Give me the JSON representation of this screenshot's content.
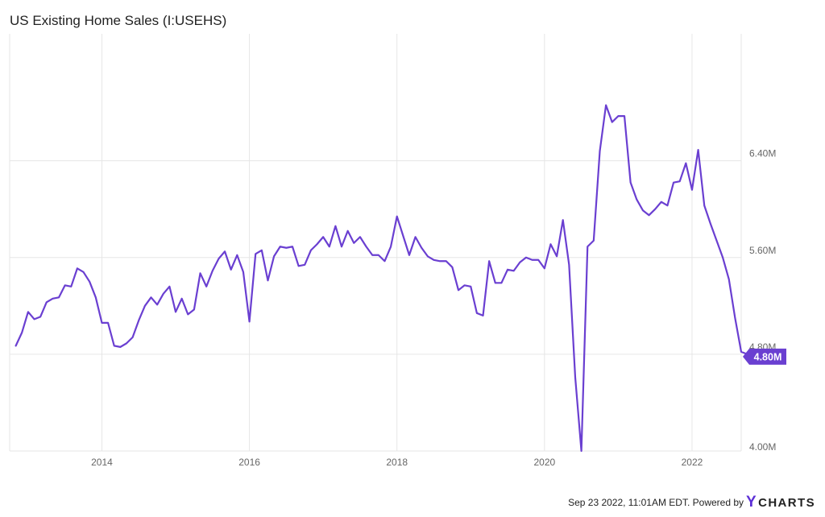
{
  "chart_data": {
    "type": "line",
    "title": "US Existing Home Sales (I:USEHS)",
    "x_ticks": [
      "2014",
      "2016",
      "2018",
      "2020",
      "2022"
    ],
    "y_ticks": [
      "4.00M",
      "4.80M",
      "5.60M",
      "6.40M"
    ],
    "y_tick_values": [
      4.0,
      4.8,
      5.6,
      6.4
    ],
    "ylim": [
      4.0,
      7.45
    ],
    "xlim": [
      "2012-10",
      "2022-09"
    ],
    "grid": true,
    "color": "#6a3fd1",
    "last_value_label": "4.80M",
    "series": [
      {
        "name": "US Existing Home Sales",
        "start": "2012-11",
        "values": [
          4.87,
          4.98,
          5.15,
          5.09,
          5.11,
          5.23,
          5.26,
          5.27,
          5.37,
          5.36,
          5.51,
          5.48,
          5.4,
          5.27,
          5.06,
          5.06,
          4.87,
          4.86,
          4.89,
          4.94,
          5.08,
          5.2,
          5.27,
          5.21,
          5.3,
          5.36,
          5.15,
          5.26,
          5.13,
          5.17,
          5.47,
          5.36,
          5.49,
          5.59,
          5.65,
          5.5,
          5.62,
          5.48,
          5.07,
          5.63,
          5.66,
          5.41,
          5.61,
          5.69,
          5.68,
          5.69,
          5.53,
          5.54,
          5.66,
          5.71,
          5.77,
          5.69,
          5.86,
          5.69,
          5.82,
          5.72,
          5.77,
          5.69,
          5.62,
          5.62,
          5.57,
          5.69,
          5.94,
          5.78,
          5.62,
          5.77,
          5.68,
          5.61,
          5.58,
          5.57,
          5.57,
          5.52,
          5.33,
          5.37,
          5.36,
          5.14,
          5.12,
          5.57,
          5.39,
          5.39,
          5.5,
          5.49,
          5.56,
          5.6,
          5.58,
          5.58,
          5.51,
          5.71,
          5.61,
          5.91,
          5.54,
          4.61,
          4.0,
          5.69,
          5.74,
          6.48,
          6.86,
          6.72,
          6.77,
          6.77,
          6.22,
          6.08,
          5.99,
          5.95,
          6.0,
          6.06,
          6.03,
          6.22,
          6.23,
          6.38,
          6.16,
          6.49,
          6.03,
          5.88,
          5.74,
          5.6,
          5.42,
          5.1,
          4.82,
          4.8,
          4.78
        ]
      }
    ]
  },
  "footer": {
    "timestamp": "Sep 23 2022, 11:01AM EDT.",
    "powered_by": "Powered by",
    "brand_initial": "Y",
    "brand_rest": "CHARTS"
  }
}
